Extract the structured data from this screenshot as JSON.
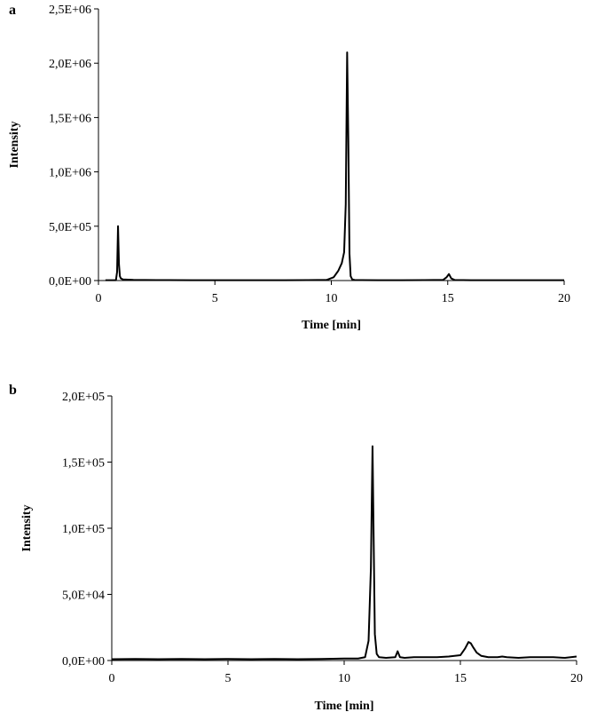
{
  "chart_data": [
    {
      "type": "line",
      "panel_label": "a",
      "title": "",
      "xlabel": "Time [min]",
      "ylabel": "Intensity",
      "xlim": [
        0,
        20
      ],
      "ylim": [
        0,
        2500000
      ],
      "xticks": [
        0,
        5,
        10,
        15,
        20
      ],
      "xtick_labels": [
        "0",
        "5",
        "10",
        "15",
        "20"
      ],
      "yticks": [
        0,
        500000,
        1000000,
        1500000,
        2000000,
        2500000
      ],
      "ytick_labels": [
        "0,0E+00",
        "5,0E+05",
        "1,0E+06",
        "1,5E+06",
        "2,0E+06",
        "2,5E+06"
      ],
      "grid": false,
      "legend": "none",
      "series": [
        {
          "color": "#000000",
          "x": [
            0.3,
            0.75,
            0.8,
            0.84,
            0.88,
            0.92,
            0.96,
            1.05,
            1.5,
            2.0,
            2.5,
            3.0,
            4.0,
            5.0,
            6.0,
            7.0,
            8.0,
            9.0,
            9.8,
            10.1,
            10.3,
            10.45,
            10.55,
            10.62,
            10.68,
            10.73,
            10.78,
            10.83,
            10.9,
            11.0,
            11.3,
            12.0,
            13.0,
            14.0,
            14.8,
            14.95,
            15.05,
            15.15,
            15.3,
            16.0,
            17.0,
            18.0,
            19.0,
            20.0
          ],
          "y": [
            3000,
            3000,
            80000,
            500000,
            150000,
            40000,
            20000,
            10000,
            6000,
            5000,
            4000,
            4000,
            3000,
            3000,
            3000,
            3000,
            3000,
            4000,
            6000,
            30000,
            90000,
            160000,
            260000,
            700000,
            2100000,
            1300000,
            250000,
            40000,
            10000,
            5000,
            4000,
            3000,
            3000,
            4000,
            6000,
            30000,
            60000,
            20000,
            5000,
            3000,
            3000,
            3000,
            3000,
            3000
          ]
        }
      ]
    },
    {
      "type": "line",
      "panel_label": "b",
      "title": "",
      "xlabel": "Time [min]",
      "ylabel": "Intensity",
      "xlim": [
        0,
        20
      ],
      "ylim": [
        0,
        200000
      ],
      "xticks": [
        0,
        5,
        10,
        15,
        20
      ],
      "xtick_labels": [
        "0",
        "5",
        "10",
        "15",
        "20"
      ],
      "yticks": [
        0,
        50000,
        100000,
        150000,
        200000
      ],
      "ytick_labels": [
        "0,0E+00",
        "5,0E+04",
        "1,0E+05",
        "1,5E+05",
        "2,0E+05"
      ],
      "grid": false,
      "legend": "none",
      "series": [
        {
          "color": "#000000",
          "x": [
            0.0,
            1.0,
            2.0,
            3.0,
            4.0,
            5.0,
            6.0,
            7.0,
            8.0,
            9.0,
            10.0,
            10.6,
            10.9,
            11.05,
            11.15,
            11.22,
            11.27,
            11.32,
            11.4,
            11.5,
            11.8,
            12.2,
            12.3,
            12.4,
            12.6,
            13.0,
            13.5,
            14.0,
            14.5,
            15.0,
            15.2,
            15.35,
            15.45,
            15.55,
            15.7,
            15.9,
            16.2,
            16.6,
            16.8,
            17.0,
            17.5,
            18.0,
            18.5,
            19.0,
            19.5,
            20.0
          ],
          "y": [
            1000,
            1200,
            1000,
            1200,
            1000,
            1200,
            1000,
            1200,
            1000,
            1200,
            1500,
            1500,
            2500,
            15000,
            70000,
            162000,
            90000,
            20000,
            5000,
            2500,
            2000,
            2500,
            7000,
            2500,
            2000,
            2500,
            2500,
            2500,
            3000,
            4000,
            9000,
            14000,
            13000,
            10000,
            6000,
            3500,
            2500,
            2500,
            3000,
            2500,
            2000,
            2500,
            2500,
            2500,
            2000,
            3000
          ]
        }
      ]
    }
  ]
}
